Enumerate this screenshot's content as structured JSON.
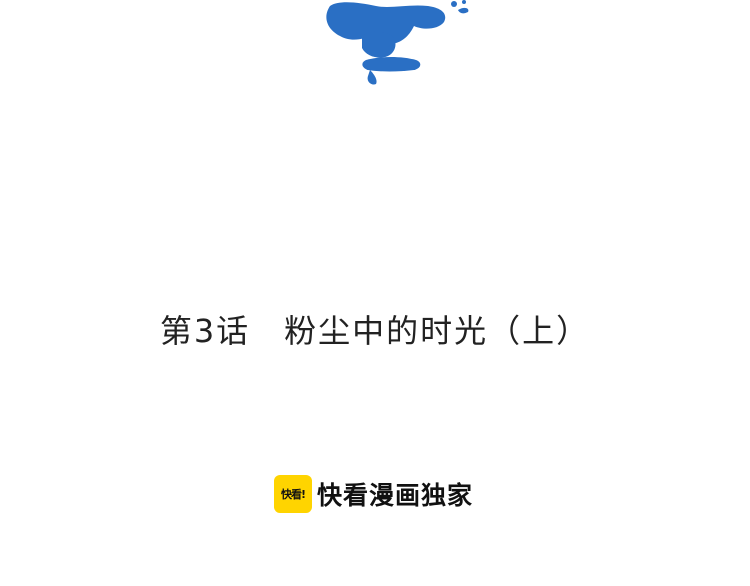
{
  "chapter": {
    "title": "第3话　粉尘中的时光（上）"
  },
  "credit": {
    "logo_text": "快看!",
    "text": "快看漫画独家",
    "logo_color": "#ffd400"
  },
  "title_art": {
    "icon": "blue-calligraphy-brush-art",
    "color": "#2a6fc4"
  }
}
